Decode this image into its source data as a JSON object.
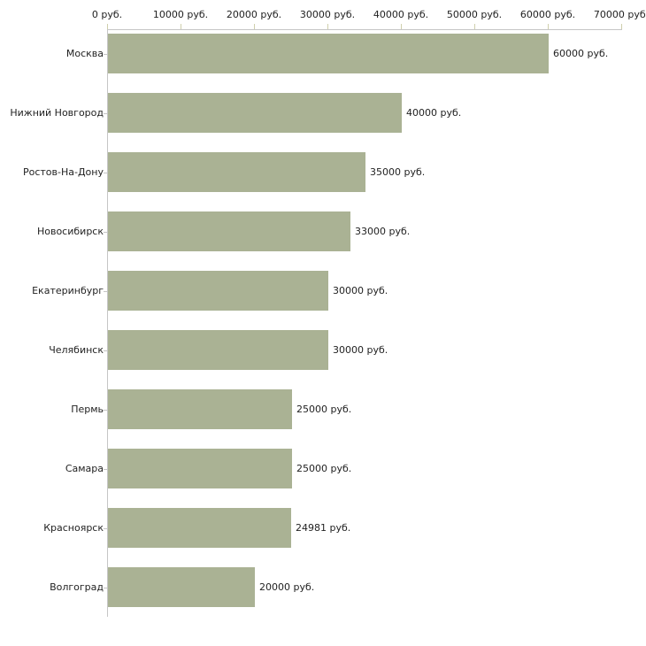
{
  "chart_data": {
    "type": "bar",
    "orientation": "horizontal",
    "title": "",
    "xlabel": "",
    "ylabel": "",
    "grid": false,
    "legend": false,
    "categories": [
      "Москва",
      "Нижний Новгород",
      "Ростов-На-Дону",
      "Новосибирск",
      "Екатеринбург",
      "Челябинск",
      "Пермь",
      "Самара",
      "Красноярск",
      "Волгоград"
    ],
    "values": [
      60000,
      40000,
      35000,
      33000,
      30000,
      30000,
      25000,
      25000,
      24981,
      20000
    ],
    "value_labels": [
      "60000 руб.",
      "40000 руб.",
      "35000 руб.",
      "33000 руб.",
      "30000 руб.",
      "30000 руб.",
      "25000 руб.",
      "25000 руб.",
      "24981 руб.",
      "20000 руб."
    ],
    "x_axis": {
      "position": "top",
      "min": 0,
      "max": 70000,
      "ticks": [
        0,
        10000,
        20000,
        30000,
        40000,
        50000,
        60000,
        70000
      ],
      "tick_labels": [
        "0 руб.",
        "10000 руб.",
        "20000 руб.",
        "30000 руб.",
        "40000 руб.",
        "50000 руб.",
        "60000 руб.",
        "70000 руб."
      ],
      "unit": "руб."
    }
  },
  "colors": {
    "bar_fill": "#aab294",
    "axis_line": "#c6c6c6",
    "tick_mark": "#cfcfac",
    "text": "#222222",
    "background": "#ffffff"
  }
}
